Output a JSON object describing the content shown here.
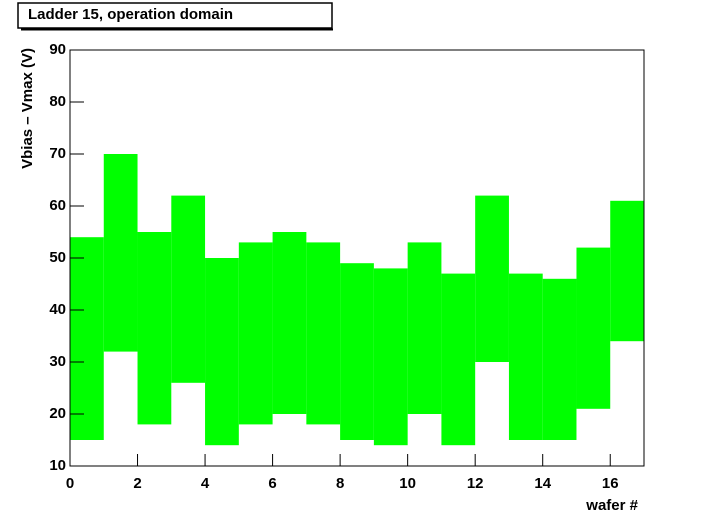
{
  "chart_data": {
    "type": "range",
    "title": "Ladder 15, operation domain",
    "x_label": "wafer #",
    "y_label": "Vbias – Vmax (V)",
    "bins": [
      0,
      1,
      2,
      3,
      4,
      5,
      6,
      7,
      8,
      9,
      10,
      11,
      12,
      13,
      14,
      15,
      16,
      17
    ],
    "low": [
      15,
      32,
      18,
      26,
      14,
      18,
      20,
      18,
      15,
      14,
      20,
      14,
      30,
      15,
      15,
      21,
      34
    ],
    "high": [
      54,
      70,
      55,
      62,
      50,
      53,
      55,
      53,
      49,
      48,
      53,
      47,
      62,
      47,
      46,
      52,
      61
    ],
    "color": "#00ff00",
    "xlim": [
      0,
      17
    ],
    "xticks": [
      0,
      2,
      4,
      6,
      8,
      10,
      12,
      14,
      16
    ],
    "ylim": [
      10,
      90
    ],
    "yticks": [
      10,
      20,
      30,
      40,
      50,
      60,
      70,
      80,
      90
    ]
  }
}
